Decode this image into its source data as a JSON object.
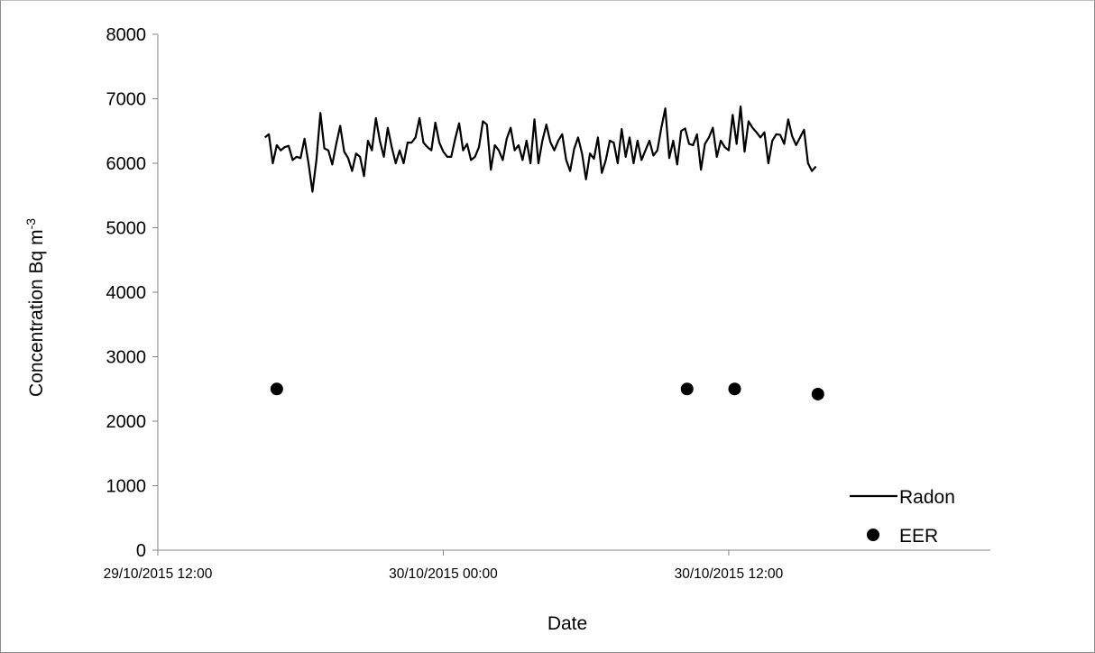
{
  "chart_data": {
    "type": "line",
    "xlabel": "Date",
    "ylabel": "Concentration Bq m",
    "ylabel_superscript": "-3",
    "x_ticks": [
      "29/10/2015 12:00",
      "30/10/2015 00:00",
      "30/10/2015 12:00"
    ],
    "xlim": [
      "29/10/2015 12:00",
      "30/10/2015 23:00"
    ],
    "ylim": [
      0,
      8000
    ],
    "y_ticks": [
      "0",
      "1000",
      "2000",
      "3000",
      "4000",
      "5000",
      "6000",
      "7000",
      "8000"
    ],
    "grid": false,
    "legend_position": "bottom-right",
    "legend_labels": [
      "Radon",
      "EER"
    ],
    "series": [
      {
        "name": "Radon",
        "kind": "line",
        "color": "#000000",
        "x_start": "29/10/2015 16:30",
        "step_minutes": 10,
        "values": [
          6400,
          6450,
          6000,
          6280,
          6200,
          6250,
          6270,
          6050,
          6100,
          6080,
          6380,
          6000,
          5560,
          6050,
          6780,
          6230,
          6200,
          5980,
          6300,
          6580,
          6180,
          6080,
          5880,
          6150,
          6100,
          5800,
          6350,
          6200,
          6700,
          6350,
          6100,
          6550,
          6250,
          6000,
          6200,
          6000,
          6320,
          6320,
          6400,
          6700,
          6320,
          6250,
          6200,
          6630,
          6320,
          6180,
          6100,
          6100,
          6380,
          6620,
          6200,
          6300,
          6050,
          6100,
          6250,
          6650,
          6600,
          5900,
          6280,
          6200,
          6050,
          6380,
          6550,
          6200,
          6280,
          6050,
          6350,
          6000,
          6680,
          6000,
          6350,
          6600,
          6330,
          6200,
          6350,
          6450,
          6050,
          5880,
          6220,
          6400,
          6150,
          5750,
          6150,
          6070,
          6400,
          5850,
          6050,
          6350,
          6320,
          6000,
          6530,
          6100,
          6400,
          6000,
          6350,
          6050,
          6200,
          6350,
          6120,
          6200,
          6550,
          6850,
          6080,
          6350,
          5980,
          6500,
          6540,
          6300,
          6280,
          6450,
          5900,
          6300,
          6400,
          6550,
          6100,
          6350,
          6250,
          6200,
          6750,
          6300,
          6880,
          6180,
          6650,
          6550,
          6480,
          6400,
          6480,
          6000,
          6350,
          6450,
          6440,
          6300,
          6680,
          6420,
          6280,
          6400,
          6520,
          6000,
          5880,
          5950
        ]
      },
      {
        "name": "EER",
        "kind": "scatter",
        "color": "#000000",
        "points": [
          {
            "x": "29/10/2015 17:00",
            "y": 2500
          },
          {
            "x": "30/10/2015 10:15",
            "y": 2500
          },
          {
            "x": "30/10/2015 12:15",
            "y": 2500
          },
          {
            "x": "30/10/2015 15:45",
            "y": 2420
          }
        ]
      }
    ]
  }
}
